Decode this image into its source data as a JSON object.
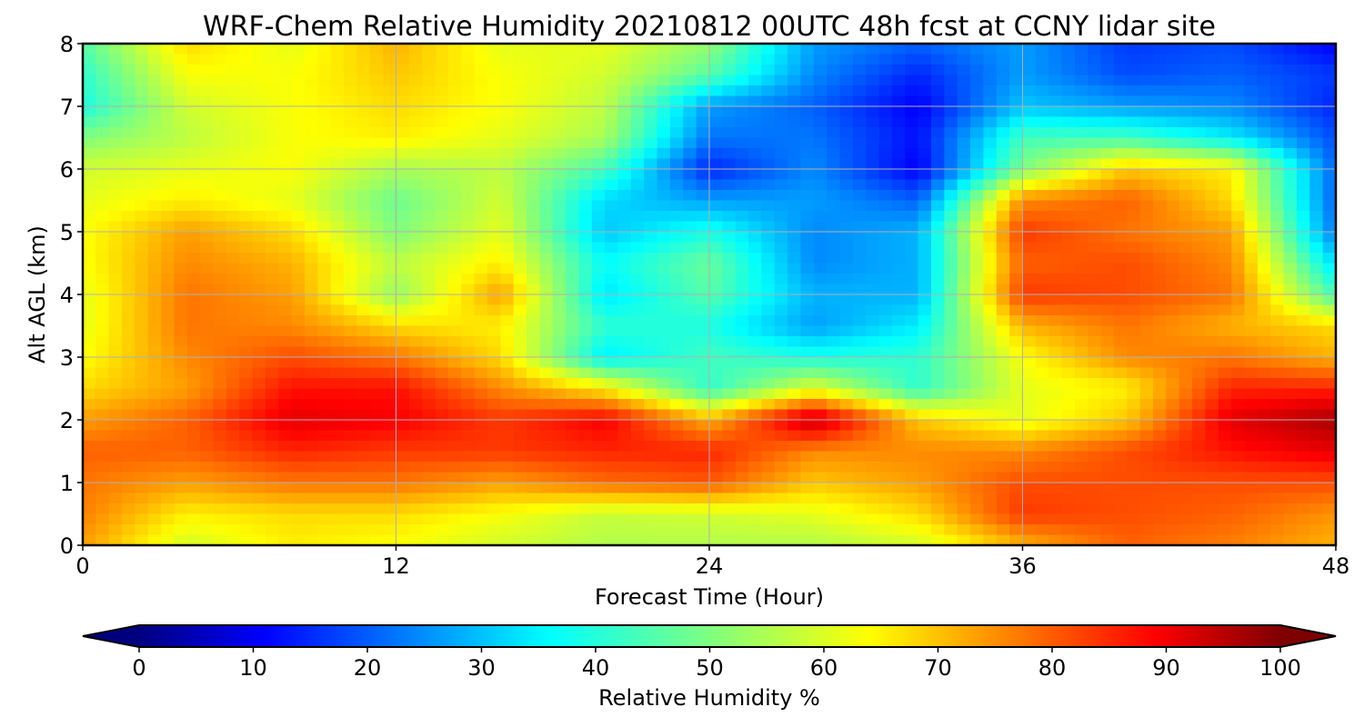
{
  "chart_data": {
    "type": "heatmap",
    "title": "WRF-Chem Relative Humidity 20210812 00UTC 48h fcst at CCNY lidar site",
    "xlabel": "Forecast Time (Hour)",
    "ylabel": "Alt AGL (km)",
    "xlim": [
      0,
      48
    ],
    "ylim": [
      0,
      8
    ],
    "xticks": [
      0,
      12,
      24,
      36,
      48
    ],
    "yticks": [
      0,
      1,
      2,
      3,
      4,
      5,
      6,
      7,
      8
    ],
    "grid": true,
    "colormap": "jet",
    "colorbar": {
      "label": "Relative Humidity %",
      "orientation": "horizontal",
      "placement": "bottom",
      "range": [
        0,
        100
      ],
      "ticks": [
        0,
        10,
        20,
        30,
        40,
        50,
        60,
        70,
        80,
        90,
        100
      ],
      "extend": "both"
    },
    "x": [
      0,
      4,
      8,
      12,
      16,
      20,
      24,
      28,
      32,
      36,
      40,
      44,
      48
    ],
    "y": [
      0,
      0.5,
      1,
      1.5,
      2,
      2.5,
      3,
      3.5,
      4,
      4.5,
      5,
      5.5,
      6,
      6.5,
      7,
      7.5,
      8
    ],
    "z": [
      [
        72,
        58,
        64,
        62,
        58,
        55,
        55,
        55,
        58,
        70,
        78,
        75,
        70
      ],
      [
        75,
        64,
        66,
        66,
        62,
        57,
        58,
        60,
        66,
        82,
        80,
        78,
        73
      ],
      [
        76,
        72,
        76,
        76,
        72,
        77,
        79,
        68,
        72,
        80,
        80,
        80,
        80
      ],
      [
        78,
        78,
        84,
        82,
        82,
        84,
        84,
        74,
        74,
        74,
        80,
        86,
        90
      ],
      [
        72,
        78,
        90,
        88,
        82,
        88,
        70,
        94,
        68,
        60,
        68,
        90,
        96
      ],
      [
        66,
        72,
        86,
        86,
        74,
        64,
        42,
        60,
        42,
        60,
        64,
        84,
        84
      ],
      [
        62,
        74,
        80,
        76,
        66,
        36,
        44,
        40,
        42,
        62,
        74,
        76,
        70
      ],
      [
        60,
        76,
        74,
        66,
        64,
        42,
        40,
        28,
        36,
        70,
        76,
        70,
        66
      ],
      [
        60,
        76,
        72,
        52,
        72,
        35,
        46,
        30,
        30,
        82,
        80,
        76,
        44
      ],
      [
        62,
        74,
        70,
        56,
        64,
        38,
        48,
        26,
        30,
        78,
        80,
        74,
        34
      ],
      [
        62,
        72,
        66,
        50,
        60,
        32,
        40,
        26,
        30,
        82,
        76,
        72,
        24
      ],
      [
        60,
        64,
        60,
        48,
        58,
        34,
        28,
        28,
        22,
        74,
        78,
        66,
        22
      ],
      [
        58,
        60,
        62,
        54,
        56,
        44,
        16,
        26,
        12,
        50,
        68,
        64,
        22
      ],
      [
        50,
        56,
        62,
        64,
        60,
        54,
        24,
        24,
        14,
        44,
        44,
        36,
        20
      ],
      [
        40,
        58,
        62,
        66,
        62,
        56,
        28,
        22,
        12,
        32,
        28,
        26,
        16
      ],
      [
        42,
        62,
        62,
        68,
        62,
        58,
        46,
        26,
        16,
        28,
        20,
        22,
        18
      ],
      [
        46,
        66,
        60,
        70,
        60,
        60,
        52,
        28,
        22,
        28,
        18,
        20,
        12
      ]
    ]
  }
}
